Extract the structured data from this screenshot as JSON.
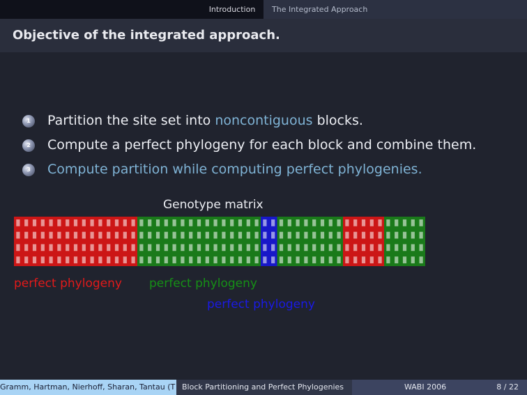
{
  "nav": {
    "tabs": [
      {
        "label": "Introduction"
      },
      {
        "label": "The Integrated Approach"
      }
    ]
  },
  "frame": {
    "title": "Objective of the integrated approach."
  },
  "steps": [
    {
      "num": "1",
      "parts": [
        "Partition the site set into ",
        "noncontiguous",
        " blocks."
      ]
    },
    {
      "num": "2",
      "text": "Compute a perfect phylogeny for each block and combine them."
    },
    {
      "num": "3",
      "text": "Compute partition while computing perfect phylogenies."
    }
  ],
  "matrix": {
    "title": "Genotype matrix",
    "rows": 4,
    "blocks": [
      {
        "color": "red",
        "columns": 15
      },
      {
        "color": "green",
        "columns": 15
      },
      {
        "color": "blue",
        "columns": 2
      },
      {
        "color": "green",
        "columns": 8
      },
      {
        "color": "red",
        "columns": 5
      },
      {
        "color": "green",
        "columns": 5
      }
    ],
    "labels": [
      {
        "text": "perfect phylogeny",
        "color": "#e21a1a"
      },
      {
        "text": "perfect phylogeny",
        "color": "#169016"
      },
      {
        "text": "perfect phylogeny",
        "color": "#1a1ae6"
      }
    ]
  },
  "colors": {
    "red": "#cc1616",
    "green": "#1a7a1a",
    "blue": "#1818c8",
    "highlight": "#7fb3d5"
  },
  "footer": {
    "authors": "Gramm, Hartman, Nierhoff, Sharan, Tantau  (T",
    "talk_title": "Block Partitioning and Perfect Phylogenies",
    "conference": "WABI 2006",
    "page": "8 / 22"
  }
}
